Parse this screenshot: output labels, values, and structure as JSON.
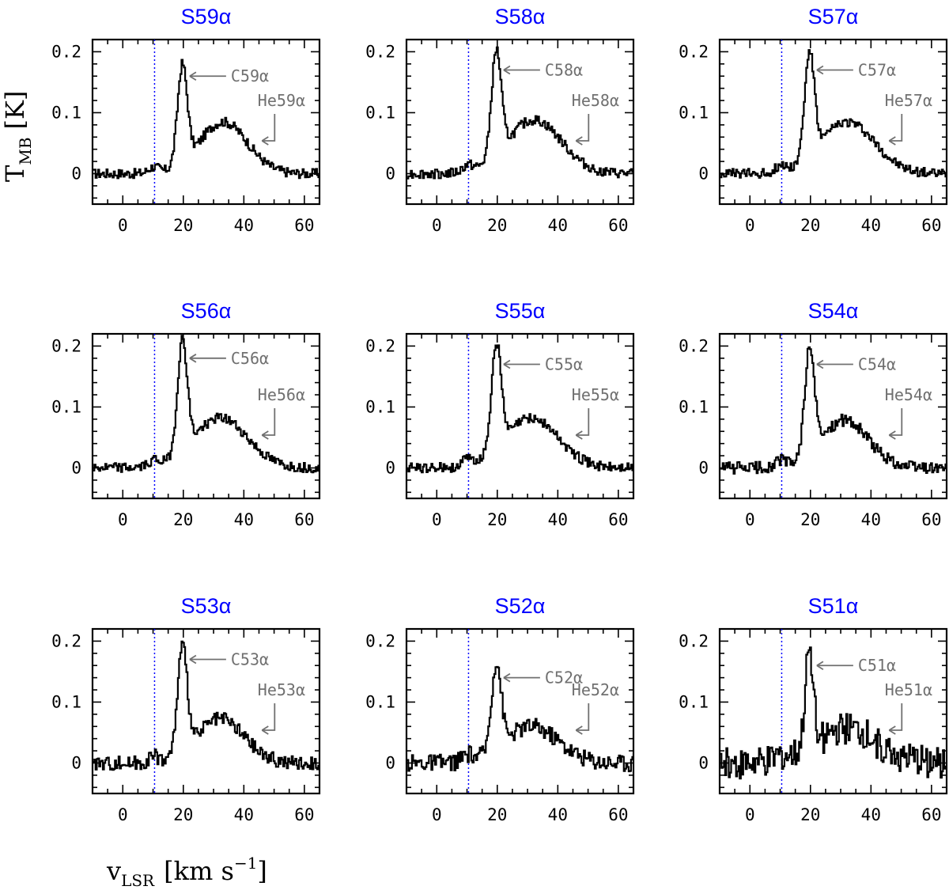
{
  "figure": {
    "y_axis_label": {
      "main": "T",
      "sub": "MB",
      "unit": "[K]"
    },
    "x_axis_label": {
      "main": "v",
      "sub": "LSR",
      "unit_open": "[km s",
      "unit_exp": "−1",
      "unit_close": "]"
    }
  },
  "colors": {
    "title": "#0000ff",
    "spectrum": "#000000",
    "marker": "#0000ff",
    "annotation": "#707070"
  },
  "chart_data": [
    {
      "type": "line",
      "title": "S59α",
      "xlim": [
        -10,
        65
      ],
      "ylim": [
        -0.05,
        0.22
      ],
      "xticks": [
        "0",
        "20",
        "40",
        "60"
      ],
      "yticks": [
        "0",
        "0.1",
        "0.2"
      ],
      "marker_x": 10.5,
      "carbon": {
        "label": "C59α",
        "x": 19.5,
        "peak": 0.16,
        "width": 1.6
      },
      "broad": {
        "x": 33,
        "amp": 0.085,
        "sigma": 8
      },
      "helium": {
        "label": "He59α",
        "x": 46
      },
      "noise": 0.004
    },
    {
      "type": "line",
      "title": "S58α",
      "xlim": [
        -10,
        65
      ],
      "ylim": [
        -0.05,
        0.22
      ],
      "xticks": [
        "0",
        "20",
        "40",
        "60"
      ],
      "yticks": [
        "0",
        "0.1",
        "0.2"
      ],
      "marker_x": 10.5,
      "carbon": {
        "label": "C58α",
        "x": 19.5,
        "peak": 0.17,
        "width": 1.6
      },
      "broad": {
        "x": 32,
        "amp": 0.088,
        "sigma": 9
      },
      "helium": {
        "label": "He58α",
        "x": 46
      },
      "noise": 0.004
    },
    {
      "type": "line",
      "title": "S57α",
      "xlim": [
        -10,
        65
      ],
      "ylim": [
        -0.05,
        0.22
      ],
      "xticks": [
        "0",
        "20",
        "40",
        "60"
      ],
      "yticks": [
        "0",
        "0.1",
        "0.2"
      ],
      "marker_x": 10.5,
      "carbon": {
        "label": "C57α",
        "x": 19.5,
        "peak": 0.17,
        "width": 1.6
      },
      "broad": {
        "x": 32,
        "amp": 0.085,
        "sigma": 9
      },
      "helium": {
        "label": "He57α",
        "x": 46
      },
      "noise": 0.004
    },
    {
      "type": "line",
      "title": "S56α",
      "xlim": [
        -10,
        65
      ],
      "ylim": [
        -0.05,
        0.22
      ],
      "xticks": [
        "0",
        "20",
        "40",
        "60"
      ],
      "yticks": [
        "0",
        "0.1",
        "0.2"
      ],
      "marker_x": 10.5,
      "carbon": {
        "label": "C56α",
        "x": 19.5,
        "peak": 0.18,
        "width": 1.6
      },
      "broad": {
        "x": 32,
        "amp": 0.082,
        "sigma": 9
      },
      "helium": {
        "label": "He56α",
        "x": 46
      },
      "noise": 0.004
    },
    {
      "type": "line",
      "title": "S55α",
      "xlim": [
        -10,
        65
      ],
      "ylim": [
        -0.05,
        0.22
      ],
      "xticks": [
        "0",
        "20",
        "40",
        "60"
      ],
      "yticks": [
        "0",
        "0.1",
        "0.2"
      ],
      "marker_x": 10.5,
      "carbon": {
        "label": "C55α",
        "x": 19.5,
        "peak": 0.17,
        "width": 1.6
      },
      "broad": {
        "x": 31,
        "amp": 0.082,
        "sigma": 9
      },
      "helium": {
        "label": "He55α",
        "x": 46
      },
      "noise": 0.004
    },
    {
      "type": "line",
      "title": "S54α",
      "xlim": [
        -10,
        65
      ],
      "ylim": [
        -0.05,
        0.22
      ],
      "xticks": [
        "0",
        "20",
        "40",
        "60"
      ],
      "yticks": [
        "0",
        "0.1",
        "0.2"
      ],
      "marker_x": 10.5,
      "carbon": {
        "label": "C54α",
        "x": 19.5,
        "peak": 0.17,
        "width": 1.6
      },
      "broad": {
        "x": 31,
        "amp": 0.078,
        "sigma": 8
      },
      "helium": {
        "label": "He54α",
        "x": 46
      },
      "noise": 0.005
    },
    {
      "type": "line",
      "title": "S53α",
      "xlim": [
        -10,
        65
      ],
      "ylim": [
        -0.05,
        0.22
      ],
      "xticks": [
        "0",
        "20",
        "40",
        "60"
      ],
      "yticks": [
        "0",
        "0.1",
        "0.2"
      ],
      "marker_x": 10.5,
      "carbon": {
        "label": "C53α",
        "x": 19.5,
        "peak": 0.17,
        "width": 1.6
      },
      "broad": {
        "x": 32,
        "amp": 0.072,
        "sigma": 8
      },
      "helium": {
        "label": "He53α",
        "x": 46
      },
      "noise": 0.006
    },
    {
      "type": "line",
      "title": "S52α",
      "xlim": [
        -10,
        65
      ],
      "ylim": [
        -0.05,
        0.22
      ],
      "xticks": [
        "0",
        "20",
        "40",
        "60"
      ],
      "yticks": [
        "0",
        "0.1",
        "0.2"
      ],
      "marker_x": 10.5,
      "carbon": {
        "label": "C52α",
        "x": 19.5,
        "peak": 0.14,
        "width": 1.6
      },
      "broad": {
        "x": 31,
        "amp": 0.06,
        "sigma": 9
      },
      "helium": {
        "label": "He52α",
        "x": 46
      },
      "noise": 0.007
    },
    {
      "type": "line",
      "title": "S51α",
      "xlim": [
        -10,
        65
      ],
      "ylim": [
        -0.05,
        0.22
      ],
      "xticks": [
        "0",
        "20",
        "40",
        "60"
      ],
      "yticks": [
        "0",
        "0.1",
        "0.2"
      ],
      "marker_x": 10.5,
      "carbon": {
        "label": "C51α",
        "x": 19.5,
        "peak": 0.16,
        "width": 1.4
      },
      "broad": {
        "x": 32,
        "amp": 0.055,
        "sigma": 10
      },
      "helium": {
        "label": "He51α",
        "x": 46
      },
      "noise": 0.013
    }
  ]
}
